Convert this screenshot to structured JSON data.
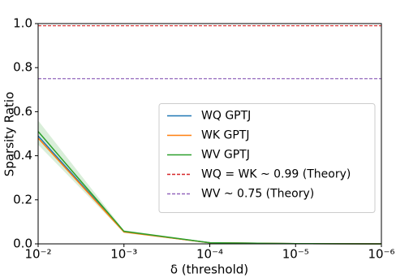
{
  "chart_data": {
    "type": "line",
    "x_label": "δ (threshold)",
    "y_label": "Sparsity Ratio",
    "x": [
      0.01,
      0.001,
      0.0001,
      1e-05,
      1e-06
    ],
    "xscale": "log",
    "xlim": [
      0.01,
      1e-06
    ],
    "xticks": [
      {
        "value": 0.01,
        "label": "10⁻²"
      },
      {
        "value": 0.001,
        "label": "10⁻³"
      },
      {
        "value": 0.0001,
        "label": "10⁻⁴"
      },
      {
        "value": 1e-05,
        "label": "10⁻⁵"
      },
      {
        "value": 1e-06,
        "label": "10⁻⁶"
      }
    ],
    "ylim": [
      0,
      1
    ],
    "yticks": [
      {
        "value": 0,
        "label": "0.0"
      },
      {
        "value": 0.2,
        "label": "0.2"
      },
      {
        "value": 0.4,
        "label": "0.4"
      },
      {
        "value": 0.6,
        "label": "0.6"
      },
      {
        "value": 0.8,
        "label": "0.8"
      },
      {
        "value": 1,
        "label": "1.0"
      }
    ],
    "series": [
      {
        "name": "WQ GPTJ",
        "color": "#1f77b4",
        "values": [
          0.49,
          0.055,
          0.005,
          0.001,
          0
        ]
      },
      {
        "name": "WK GPTJ",
        "color": "#ff7f0e",
        "values": [
          0.48,
          0.054,
          0.005,
          0.001,
          0
        ]
      },
      {
        "name": "WV GPTJ",
        "color": "#2ca02c",
        "values": [
          0.51,
          0.057,
          0.005,
          0.001,
          0
        ],
        "upper": [
          0.56,
          0.062,
          0.007,
          0.002,
          0
        ],
        "lower": [
          0.45,
          0.05,
          0.003,
          0,
          0
        ]
      }
    ],
    "hlines": [
      {
        "name": "WQ = WK ~ 0.99 (Theory)",
        "color": "#d62728",
        "value": 0.99
      },
      {
        "name": "WV ~ 0.75 (Theory)",
        "color": "#9467bd",
        "value": 0.75
      }
    ],
    "legend": "center right"
  }
}
